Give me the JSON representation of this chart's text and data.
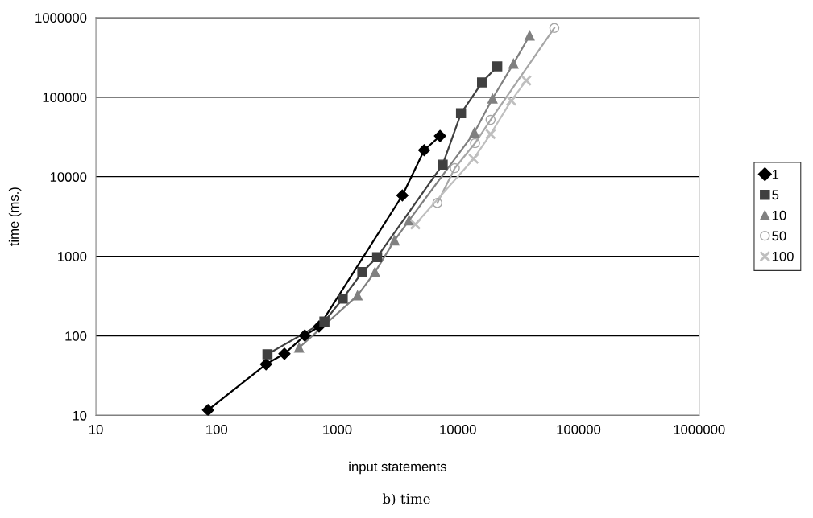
{
  "chart_data": {
    "type": "line",
    "xlabel": "input statements",
    "ylabel": "time (ms.)",
    "log": "xy",
    "grid": "y",
    "legend": "right",
    "xlim": [
      10,
      1000000
    ],
    "ylim": [
      10,
      1000000
    ],
    "xticks": [
      10,
      100,
      1000,
      10000,
      100000,
      1000000
    ],
    "yticks": [
      10,
      100,
      1000,
      10000,
      100000,
      1000000
    ],
    "annotations": [
      "b) time"
    ],
    "series": [
      {
        "name": "1",
        "color": "#000000",
        "marker": "diamond",
        "x": [
          85,
          257,
          365,
          538,
          707,
          3467,
          5255,
          7115
        ],
        "values": [
          11.7,
          44,
          59.6,
          101,
          131,
          5820,
          21550,
          32500
        ]
      },
      {
        "name": "5",
        "color": "#404040",
        "marker": "square",
        "x": [
          264,
          783,
          1110,
          1614,
          2142,
          7480,
          10620,
          15850,
          21200
        ],
        "values": [
          58.6,
          151,
          294,
          632,
          977,
          14190,
          62800,
          153000,
          244000
        ]
      },
      {
        "name": "10",
        "color": "#808080",
        "marker": "triangle",
        "x": [
          483,
          1472,
          2055,
          2985,
          3942,
          13700,
          19360,
          28900,
          39300
        ],
        "values": [
          71,
          322,
          632,
          1582,
          2830,
          35900,
          96100,
          263800,
          595000
        ]
      },
      {
        "name": "50",
        "color": "#a6a6a6",
        "marker": "circle",
        "x": [
          6760,
          9440,
          13870,
          18660,
          63000
        ],
        "values": [
          4680,
          12820,
          26400,
          51800,
          740000
        ]
      },
      {
        "name": "100",
        "color": "#bfbfbf",
        "marker": "cross",
        "x": [
          4440,
          13490,
          18660,
          27700,
          36900
        ],
        "values": [
          2520,
          16800,
          34300,
          90600,
          162000
        ]
      }
    ]
  }
}
